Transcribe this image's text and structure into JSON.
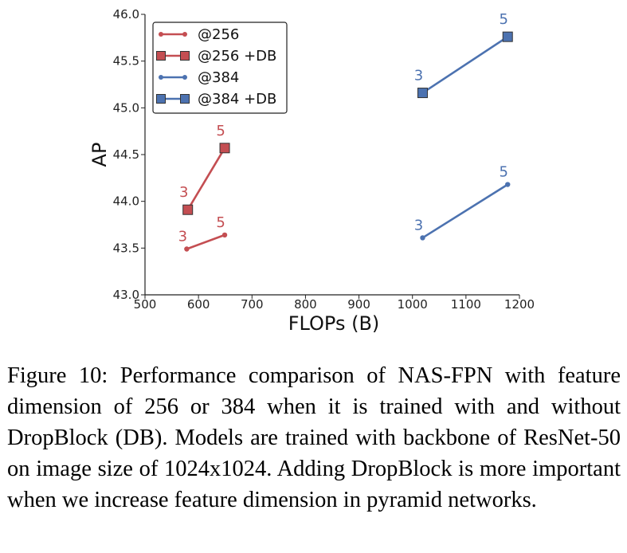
{
  "chart_data": {
    "type": "line",
    "title": "",
    "xlabel": "FLOPs (B)",
    "ylabel": "AP",
    "xlim": [
      500,
      1200
    ],
    "ylim": [
      43.0,
      46.0
    ],
    "xticks": [
      "500",
      "600",
      "700",
      "800",
      "900",
      "1000",
      "1100",
      "1200"
    ],
    "yticks": [
      "43.0",
      "43.5",
      "44.0",
      "44.5",
      "45.0",
      "45.5",
      "46.0"
    ],
    "grid": false,
    "legend_position": "top-left",
    "series": [
      {
        "name": "@256",
        "color": "#c44e52",
        "marker": "circle",
        "x": [
          578,
          649
        ],
        "y": [
          43.49,
          43.64
        ],
        "labels": [
          "3",
          "5"
        ]
      },
      {
        "name": "@256 +DB",
        "color": "#c44e52",
        "marker": "square",
        "x": [
          580,
          649
        ],
        "y": [
          43.91,
          44.57
        ],
        "labels": [
          "3",
          "5"
        ]
      },
      {
        "name": "@384",
        "color": "#4c72b0",
        "marker": "circle",
        "x": [
          1019,
          1178
        ],
        "y": [
          43.61,
          44.18
        ],
        "labels": [
          "3",
          "5"
        ]
      },
      {
        "name": "@384 +DB",
        "color": "#4c72b0",
        "marker": "square",
        "x": [
          1019,
          1178
        ],
        "y": [
          45.16,
          45.76
        ],
        "labels": [
          "3",
          "5"
        ]
      }
    ]
  },
  "caption": "Figure 10: Performance comparison of NAS-FPN with feature dimension of 256 or 384 when it is trained with and without DropBlock (DB). Models are trained with backbone of ResNet-50 on image size of 1024x1024. Adding DropBlock is more important when we increase feature dimension in pyramid networks."
}
